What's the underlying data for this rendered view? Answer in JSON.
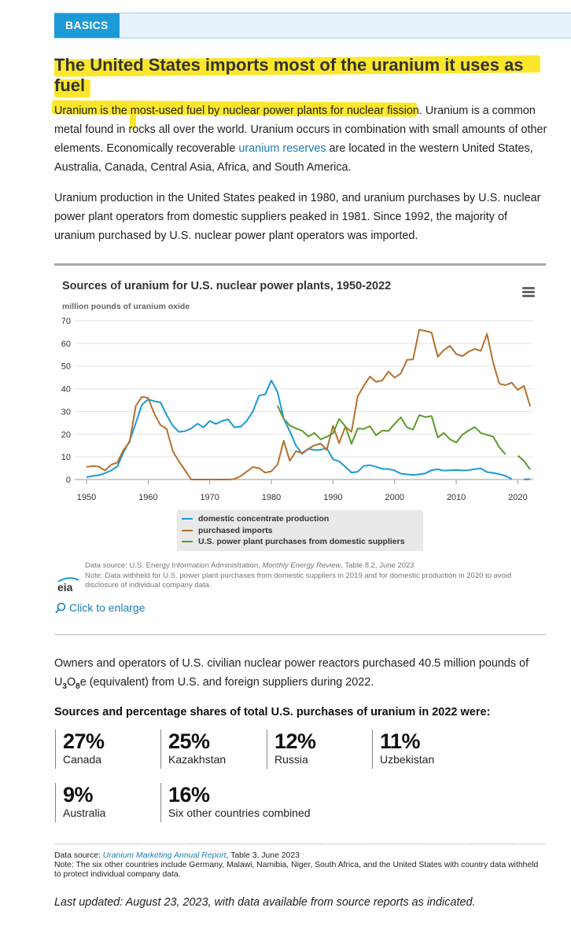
{
  "tag": {
    "label": "BASICS"
  },
  "heading": "The United States imports most of the uranium it uses as fuel",
  "intro": {
    "p1_part1": "Uranium is the most-used fuel by nuclear power plants for nuclear fission. Uranium is a common metal found in rocks all over the world. Uranium occurs in combination with small amounts of other elements. Economically recoverable ",
    "p1_link": "uranium reserves",
    "p1_part2": " are located in the western United States, Australia, Canada, Central Asia, Africa, and South America.",
    "p2": "Uranium production in the United States peaked in 1980, and uranium purchases by U.S. nuclear power plant operators from domestic suppliers peaked in 1981. Since 1992, the majority of uranium purchased by U.S. nuclear power plant operators was imported."
  },
  "chart_meta": {
    "source_prefix": "Data source: U.S. Energy Information Administration, ",
    "source_title": "Monthly Energy Review",
    "source_suffix": ", Table 8.2, June 2023",
    "note": "Note: Data withheld for U.S. power plant purchases from domestic suppliers in 2019 and for domestic production in 2020 to avoid disclosure of individual company data.",
    "logo_text": "eia",
    "enlarge_label": "Click to enlarge"
  },
  "chart_data": {
    "type": "line",
    "title": "Sources of uranium for U.S. nuclear power plants, 1950-2022",
    "ylabel": "million pounds of uranium oxide",
    "xlabel": "",
    "xlim": [
      1950,
      2022
    ],
    "ylim": [
      0,
      70
    ],
    "x_ticks": [
      1950,
      1960,
      1970,
      1980,
      1990,
      2000,
      2010,
      2020
    ],
    "y_ticks": [
      0,
      10,
      20,
      30,
      40,
      50,
      60,
      70
    ],
    "grid": true,
    "legend_position": "bottom-center",
    "series": [
      {
        "name": "domestic concentrate production",
        "color": "#1a9ad6",
        "points": [
          [
            1950,
            1
          ],
          [
            1951,
            1.6
          ],
          [
            1952,
            1.9
          ],
          [
            1953,
            2.8
          ],
          [
            1954,
            4
          ],
          [
            1955,
            5.8
          ],
          [
            1956,
            12
          ],
          [
            1957,
            17
          ],
          [
            1958,
            25
          ],
          [
            1959,
            33
          ],
          [
            1960,
            35.3
          ],
          [
            1961,
            34.5
          ],
          [
            1962,
            34
          ],
          [
            1963,
            28.5
          ],
          [
            1964,
            23.7
          ],
          [
            1965,
            21
          ],
          [
            1966,
            21.3
          ],
          [
            1967,
            22.5
          ],
          [
            1968,
            24.6
          ],
          [
            1969,
            23
          ],
          [
            1970,
            25.8
          ],
          [
            1971,
            24.5
          ],
          [
            1972,
            25.8
          ],
          [
            1973,
            26.5
          ],
          [
            1974,
            23
          ],
          [
            1975,
            23.3
          ],
          [
            1976,
            25.8
          ],
          [
            1977,
            30
          ],
          [
            1978,
            37
          ],
          [
            1979,
            37.5
          ],
          [
            1980,
            43.7
          ],
          [
            1981,
            38.5
          ],
          [
            1982,
            26.9
          ],
          [
            1983,
            21.2
          ],
          [
            1984,
            14.9
          ],
          [
            1985,
            11.3
          ],
          [
            1986,
            13.5
          ],
          [
            1987,
            13
          ],
          [
            1988,
            13.1
          ],
          [
            1989,
            13.8
          ],
          [
            1990,
            8.9
          ],
          [
            1991,
            8
          ],
          [
            1992,
            5.6
          ],
          [
            1993,
            3.1
          ],
          [
            1994,
            3.4
          ],
          [
            1995,
            6
          ],
          [
            1996,
            6.3
          ],
          [
            1997,
            5.6
          ],
          [
            1998,
            4.7
          ],
          [
            1999,
            4.6
          ],
          [
            2000,
            4
          ],
          [
            2001,
            2.6
          ],
          [
            2002,
            2.3
          ],
          [
            2003,
            2
          ],
          [
            2004,
            2.3
          ],
          [
            2005,
            2.7
          ],
          [
            2006,
            4.1
          ],
          [
            2007,
            4.5
          ],
          [
            2008,
            3.9
          ],
          [
            2009,
            4.1
          ],
          [
            2010,
            4.2
          ],
          [
            2011,
            4
          ],
          [
            2012,
            4.1
          ],
          [
            2013,
            4.6
          ],
          [
            2014,
            4.9
          ],
          [
            2015,
            3.3
          ],
          [
            2016,
            2.9
          ],
          [
            2017,
            2.4
          ],
          [
            2018,
            1.6
          ],
          [
            2019,
            0.2
          ],
          [
            null,
            null
          ],
          [
            2021,
            0.02
          ],
          [
            2022,
            0.19
          ]
        ]
      },
      {
        "name": "purchased imports",
        "color": "#b5702e",
        "points": [
          [
            1950,
            5.5
          ],
          [
            1951,
            6
          ],
          [
            1952,
            5.7
          ],
          [
            1953,
            4
          ],
          [
            1954,
            6.5
          ],
          [
            1955,
            7.5
          ],
          [
            1956,
            13
          ],
          [
            1957,
            16.5
          ],
          [
            1958,
            32.5
          ],
          [
            1959,
            36.5
          ],
          [
            1960,
            36
          ],
          [
            1961,
            29
          ],
          [
            1962,
            24
          ],
          [
            1963,
            22.4
          ],
          [
            1964,
            12.5
          ],
          [
            1965,
            8
          ],
          [
            1966,
            4
          ],
          [
            1967,
            0
          ],
          [
            1968,
            0
          ],
          [
            1969,
            0
          ],
          [
            1970,
            0
          ],
          [
            1971,
            0
          ],
          [
            1972,
            0
          ],
          [
            1973,
            0
          ],
          [
            1974,
            0.2
          ],
          [
            1975,
            1.5
          ],
          [
            1976,
            3.5
          ],
          [
            1977,
            5.5
          ],
          [
            1978,
            5
          ],
          [
            1979,
            3
          ],
          [
            1980,
            3.6
          ],
          [
            1981,
            6.6
          ],
          [
            1982,
            17.1
          ],
          [
            1983,
            8.2
          ],
          [
            1984,
            12.5
          ],
          [
            1985,
            11.7
          ],
          [
            1986,
            13.5
          ],
          [
            1987,
            15.1
          ],
          [
            1988,
            15.8
          ],
          [
            1989,
            13.1
          ],
          [
            1990,
            23.7
          ],
          [
            1991,
            16
          ],
          [
            1992,
            23.3
          ],
          [
            1993,
            21
          ],
          [
            1994,
            36.6
          ],
          [
            1995,
            41.3
          ],
          [
            1996,
            45.4
          ],
          [
            1997,
            43
          ],
          [
            1998,
            43.7
          ],
          [
            1999,
            47.6
          ],
          [
            2000,
            44.9
          ],
          [
            2001,
            46.7
          ],
          [
            2002,
            52.7
          ],
          [
            2003,
            53
          ],
          [
            2004,
            66.1
          ],
          [
            2005,
            65.5
          ],
          [
            2006,
            64.8
          ],
          [
            2007,
            54.1
          ],
          [
            2008,
            57.1
          ],
          [
            2009,
            58.9
          ],
          [
            2010,
            55.3
          ],
          [
            2011,
            54.4
          ],
          [
            2012,
            56.3
          ],
          [
            2013,
            57.6
          ],
          [
            2014,
            56.7
          ],
          [
            2015,
            64.2
          ],
          [
            2016,
            51.4
          ],
          [
            2017,
            42.2
          ],
          [
            2018,
            41.6
          ],
          [
            2019,
            42.7
          ],
          [
            2020,
            39.5
          ],
          [
            2021,
            41.3
          ],
          [
            2022,
            32.3
          ]
        ]
      },
      {
        "name": "U.S. power plant purchases from domestic suppliers",
        "color": "#5a9a2e",
        "points": [
          [
            1981,
            32.5
          ],
          [
            1982,
            26.8
          ],
          [
            1983,
            23.8
          ],
          [
            1984,
            22.5
          ],
          [
            1985,
            21.5
          ],
          [
            1986,
            19
          ],
          [
            1987,
            20.5
          ],
          [
            1988,
            17.7
          ],
          [
            1989,
            18.8
          ],
          [
            1990,
            20.3
          ],
          [
            1991,
            26.7
          ],
          [
            1992,
            23.5
          ],
          [
            1993,
            15.7
          ],
          [
            1994,
            22.5
          ],
          [
            1995,
            22.3
          ],
          [
            1996,
            23.5
          ],
          [
            1997,
            19.5
          ],
          [
            1998,
            21.6
          ],
          [
            1999,
            21.4
          ],
          [
            2000,
            24.5
          ],
          [
            2001,
            27.4
          ],
          [
            2002,
            23
          ],
          [
            2003,
            22
          ],
          [
            2004,
            28.4
          ],
          [
            2005,
            27.5
          ],
          [
            2006,
            28
          ],
          [
            2007,
            18.5
          ],
          [
            2008,
            20.5
          ],
          [
            2009,
            17.7
          ],
          [
            2010,
            16.3
          ],
          [
            2011,
            19.8
          ],
          [
            2012,
            21.6
          ],
          [
            2013,
            23.1
          ],
          [
            2014,
            20.5
          ],
          [
            2015,
            19.7
          ],
          [
            2016,
            18.9
          ],
          [
            2017,
            14.2
          ],
          [
            2018,
            11.1
          ],
          [
            null,
            null
          ],
          [
            2020,
            10.5
          ],
          [
            2021,
            8.2
          ],
          [
            2022,
            4.4
          ]
        ]
      }
    ]
  },
  "purchases": {
    "text_part1": "Owners and operators of U.S. civilian nuclear power reactors purchased 40.5 million pounds of ",
    "formula_u": "U",
    "formula_3": "3",
    "formula_o": "O",
    "formula_8": "8",
    "formula_e": "e",
    "text_part2": " (equivalent) from U.S. and foreign suppliers during 2022."
  },
  "shares": {
    "title": "Sources and percentage shares of total U.S. purchases of uranium in 2022 were:",
    "items": [
      {
        "pct": "27%",
        "country": "Canada"
      },
      {
        "pct": "25%",
        "country": "Kazakhstan"
      },
      {
        "pct": "12%",
        "country": "Russia"
      },
      {
        "pct": "11%",
        "country": "Uzbekistan"
      },
      {
        "pct": "9%",
        "country": "Australia"
      },
      {
        "pct": "16%",
        "country": "Six other countries combined"
      }
    ]
  },
  "footer": {
    "source_prefix": "Data source: ",
    "source_link": "Uranium Marketing Annual Report",
    "source_suffix": ", Table 3, June 2023",
    "note": "Note: The six other countries include Germany, Malawi, Namibia, Niger, South Africa, and the United States with country data withheld to protect individual company data.",
    "updated": "Last updated: August 23, 2023, with data available from source reports as indicated."
  }
}
